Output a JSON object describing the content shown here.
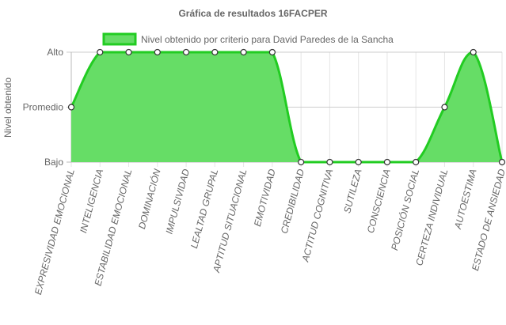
{
  "chart_data": {
    "type": "area",
    "title": "Gráfica de resultados 16FACPER",
    "ylabel": "Nivel obtenido",
    "xlabel": "",
    "y_levels": [
      "Bajo",
      "Promedio",
      "Alto"
    ],
    "ylim": [
      0,
      2
    ],
    "grid": true,
    "legend_position": "top",
    "categories": [
      "EXPRESIVIDAD EMOCIONAL",
      "INTELIGENCIA",
      "ESTABILIDAD EMOCIONAL",
      "DOMINACIÓN",
      "IMPULSIVIDAD",
      "LEALTAD GRUPAL",
      "APTITUD SITUACIONAL",
      "EMOTIVIDAD",
      "CREDIBILIDAD",
      "ACTITUD COGNITIVA",
      "SUTILEZA",
      "CONSCIENCIA",
      "POSICIÓN SOCIAL",
      "CERTEZA INDIVIDUAL",
      "AUTOESTIMA",
      "ESTADO DE ANSIEDAD"
    ],
    "series": [
      {
        "name": "Nivel obtenido por criterio para David Paredes de la Sancha",
        "values": [
          1,
          2,
          2,
          2,
          2,
          2,
          2,
          2,
          0,
          0,
          0,
          0,
          0,
          1,
          2,
          0
        ],
        "fill_color": "#66dd66",
        "line_color": "#22cc22"
      }
    ]
  }
}
